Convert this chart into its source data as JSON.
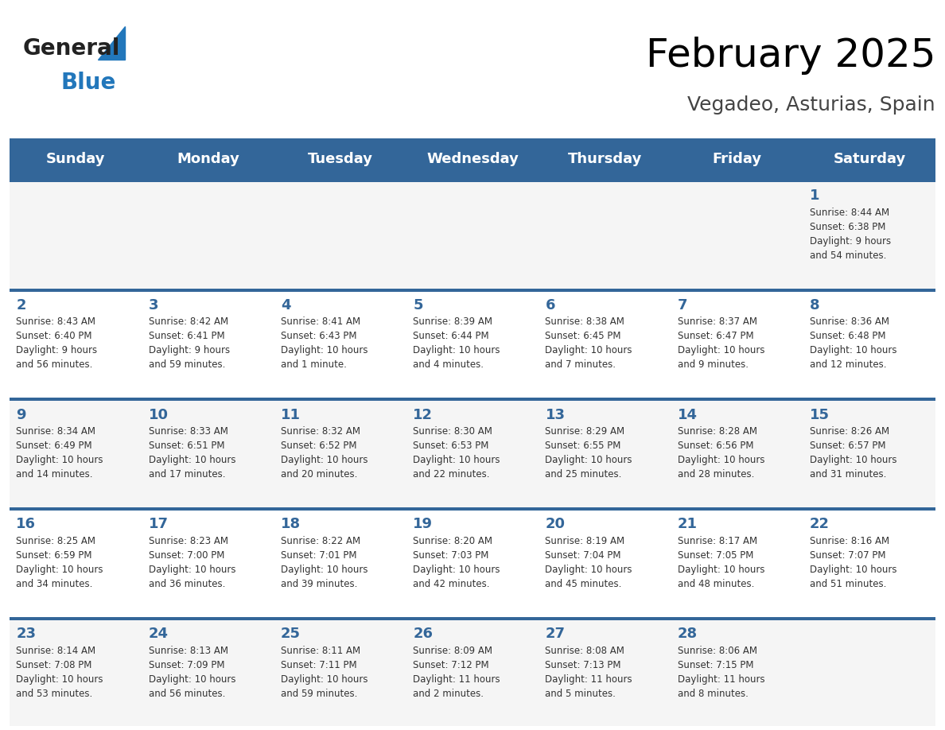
{
  "title": "February 2025",
  "subtitle": "Vegadeo, Asturias, Spain",
  "days_of_week": [
    "Sunday",
    "Monday",
    "Tuesday",
    "Wednesday",
    "Thursday",
    "Friday",
    "Saturday"
  ],
  "header_bg": "#336699",
  "header_text": "#ffffff",
  "cell_bg_even": "#f5f5f5",
  "cell_bg_odd": "#ffffff",
  "cell_border": "#336699",
  "day_number_color": "#336699",
  "info_text_color": "#333333",
  "logo_general_color": "#222222",
  "logo_blue_color": "#2277bb",
  "weeks": [
    [
      {
        "day": null,
        "info": ""
      },
      {
        "day": null,
        "info": ""
      },
      {
        "day": null,
        "info": ""
      },
      {
        "day": null,
        "info": ""
      },
      {
        "day": null,
        "info": ""
      },
      {
        "day": null,
        "info": ""
      },
      {
        "day": 1,
        "info": "Sunrise: 8:44 AM\nSunset: 6:38 PM\nDaylight: 9 hours\nand 54 minutes."
      }
    ],
    [
      {
        "day": 2,
        "info": "Sunrise: 8:43 AM\nSunset: 6:40 PM\nDaylight: 9 hours\nand 56 minutes."
      },
      {
        "day": 3,
        "info": "Sunrise: 8:42 AM\nSunset: 6:41 PM\nDaylight: 9 hours\nand 59 minutes."
      },
      {
        "day": 4,
        "info": "Sunrise: 8:41 AM\nSunset: 6:43 PM\nDaylight: 10 hours\nand 1 minute."
      },
      {
        "day": 5,
        "info": "Sunrise: 8:39 AM\nSunset: 6:44 PM\nDaylight: 10 hours\nand 4 minutes."
      },
      {
        "day": 6,
        "info": "Sunrise: 8:38 AM\nSunset: 6:45 PM\nDaylight: 10 hours\nand 7 minutes."
      },
      {
        "day": 7,
        "info": "Sunrise: 8:37 AM\nSunset: 6:47 PM\nDaylight: 10 hours\nand 9 minutes."
      },
      {
        "day": 8,
        "info": "Sunrise: 8:36 AM\nSunset: 6:48 PM\nDaylight: 10 hours\nand 12 minutes."
      }
    ],
    [
      {
        "day": 9,
        "info": "Sunrise: 8:34 AM\nSunset: 6:49 PM\nDaylight: 10 hours\nand 14 minutes."
      },
      {
        "day": 10,
        "info": "Sunrise: 8:33 AM\nSunset: 6:51 PM\nDaylight: 10 hours\nand 17 minutes."
      },
      {
        "day": 11,
        "info": "Sunrise: 8:32 AM\nSunset: 6:52 PM\nDaylight: 10 hours\nand 20 minutes."
      },
      {
        "day": 12,
        "info": "Sunrise: 8:30 AM\nSunset: 6:53 PM\nDaylight: 10 hours\nand 22 minutes."
      },
      {
        "day": 13,
        "info": "Sunrise: 8:29 AM\nSunset: 6:55 PM\nDaylight: 10 hours\nand 25 minutes."
      },
      {
        "day": 14,
        "info": "Sunrise: 8:28 AM\nSunset: 6:56 PM\nDaylight: 10 hours\nand 28 minutes."
      },
      {
        "day": 15,
        "info": "Sunrise: 8:26 AM\nSunset: 6:57 PM\nDaylight: 10 hours\nand 31 minutes."
      }
    ],
    [
      {
        "day": 16,
        "info": "Sunrise: 8:25 AM\nSunset: 6:59 PM\nDaylight: 10 hours\nand 34 minutes."
      },
      {
        "day": 17,
        "info": "Sunrise: 8:23 AM\nSunset: 7:00 PM\nDaylight: 10 hours\nand 36 minutes."
      },
      {
        "day": 18,
        "info": "Sunrise: 8:22 AM\nSunset: 7:01 PM\nDaylight: 10 hours\nand 39 minutes."
      },
      {
        "day": 19,
        "info": "Sunrise: 8:20 AM\nSunset: 7:03 PM\nDaylight: 10 hours\nand 42 minutes."
      },
      {
        "day": 20,
        "info": "Sunrise: 8:19 AM\nSunset: 7:04 PM\nDaylight: 10 hours\nand 45 minutes."
      },
      {
        "day": 21,
        "info": "Sunrise: 8:17 AM\nSunset: 7:05 PM\nDaylight: 10 hours\nand 48 minutes."
      },
      {
        "day": 22,
        "info": "Sunrise: 8:16 AM\nSunset: 7:07 PM\nDaylight: 10 hours\nand 51 minutes."
      }
    ],
    [
      {
        "day": 23,
        "info": "Sunrise: 8:14 AM\nSunset: 7:08 PM\nDaylight: 10 hours\nand 53 minutes."
      },
      {
        "day": 24,
        "info": "Sunrise: 8:13 AM\nSunset: 7:09 PM\nDaylight: 10 hours\nand 56 minutes."
      },
      {
        "day": 25,
        "info": "Sunrise: 8:11 AM\nSunset: 7:11 PM\nDaylight: 10 hours\nand 59 minutes."
      },
      {
        "day": 26,
        "info": "Sunrise: 8:09 AM\nSunset: 7:12 PM\nDaylight: 11 hours\nand 2 minutes."
      },
      {
        "day": 27,
        "info": "Sunrise: 8:08 AM\nSunset: 7:13 PM\nDaylight: 11 hours\nand 5 minutes."
      },
      {
        "day": 28,
        "info": "Sunrise: 8:06 AM\nSunset: 7:15 PM\nDaylight: 11 hours\nand 8 minutes."
      },
      {
        "day": null,
        "info": ""
      }
    ]
  ]
}
